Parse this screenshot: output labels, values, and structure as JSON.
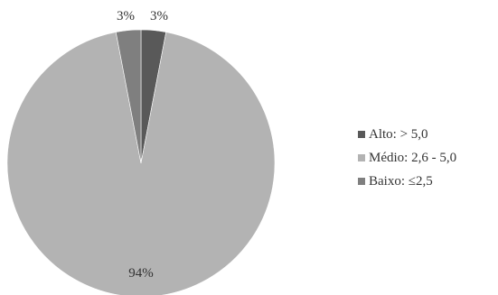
{
  "chart_data": {
    "type": "pie",
    "title": "",
    "slices": [
      {
        "label": "Alto: > 5,0",
        "value": 3,
        "display": "3%",
        "color": "#595959"
      },
      {
        "label": "Médio: 2,6 - 5,0",
        "value": 94,
        "display": "94%",
        "color": "#b3b3b3"
      },
      {
        "label": "Baixo: ≤2,5",
        "value": 3,
        "display": "3%",
        "color": "#7f7f7f"
      }
    ],
    "legend_position": "right"
  }
}
